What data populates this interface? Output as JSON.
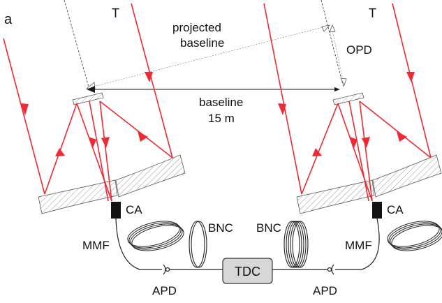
{
  "panel_label": "a",
  "labels": {
    "telescope_left": "T",
    "telescope_right": "T",
    "projected_baseline_line1": "projected",
    "projected_baseline_line2": "baseline",
    "opd": "OPD",
    "baseline_line1": "baseline",
    "baseline_line2": "15 m",
    "ca_left": "CA",
    "ca_right": "CA",
    "mmf_left": "MMF",
    "mmf_right": "MMF",
    "bnc_left": "BNC",
    "bnc_right": "BNC",
    "tdc": "TDC",
    "apd_left": "APD",
    "apd_right": "APD"
  },
  "colors": {
    "beam": "#ee2a35",
    "line": "#1a1a1a",
    "guide": "#888888",
    "tdc_fill": "#d7d7d7",
    "hatch": "#9a9a9a"
  }
}
